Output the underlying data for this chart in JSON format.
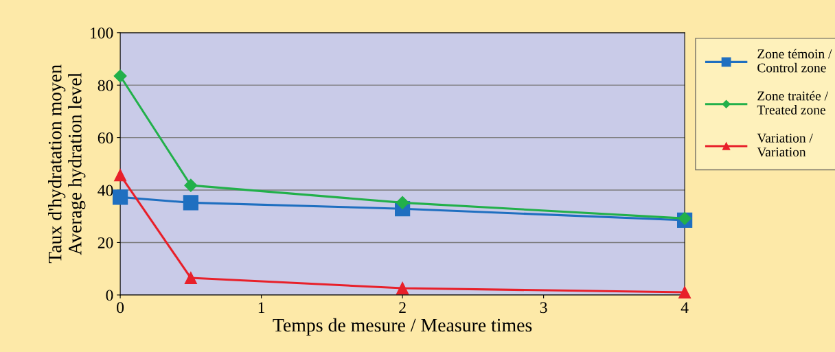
{
  "chart_data": {
    "type": "line",
    "xlabel": "Temps de mesure / Measure times",
    "ylabel": "Taux d'hydratation moyen\nAverage hydration level",
    "xlim": [
      0,
      4
    ],
    "xticks": [
      0,
      1,
      2,
      3,
      4
    ],
    "ylim": [
      0,
      100
    ],
    "yticks": [
      0,
      20,
      40,
      60,
      80,
      100
    ],
    "grid": "y",
    "legend": "right",
    "line_style": "solid",
    "series": [
      {
        "name": "Zone témoin /\nControl zone",
        "color": "#1f6fc0",
        "marker": "square",
        "x": [
          0,
          0.5,
          2,
          4
        ],
        "values": [
          37.3,
          35.2,
          32.9,
          28.5
        ]
      },
      {
        "name": "Zone traitée /\nTreated zone",
        "color": "#22b04a",
        "marker": "diamond",
        "x": [
          0,
          0.5,
          2,
          4
        ],
        "values": [
          83.5,
          41.8,
          35.2,
          29.2
        ]
      },
      {
        "name": "Variation /\nVariation",
        "color": "#e8202a",
        "marker": "triangle",
        "x": [
          0,
          0.5,
          2,
          4
        ],
        "values": [
          45.7,
          6.5,
          2.6,
          1.0
        ]
      }
    ]
  }
}
